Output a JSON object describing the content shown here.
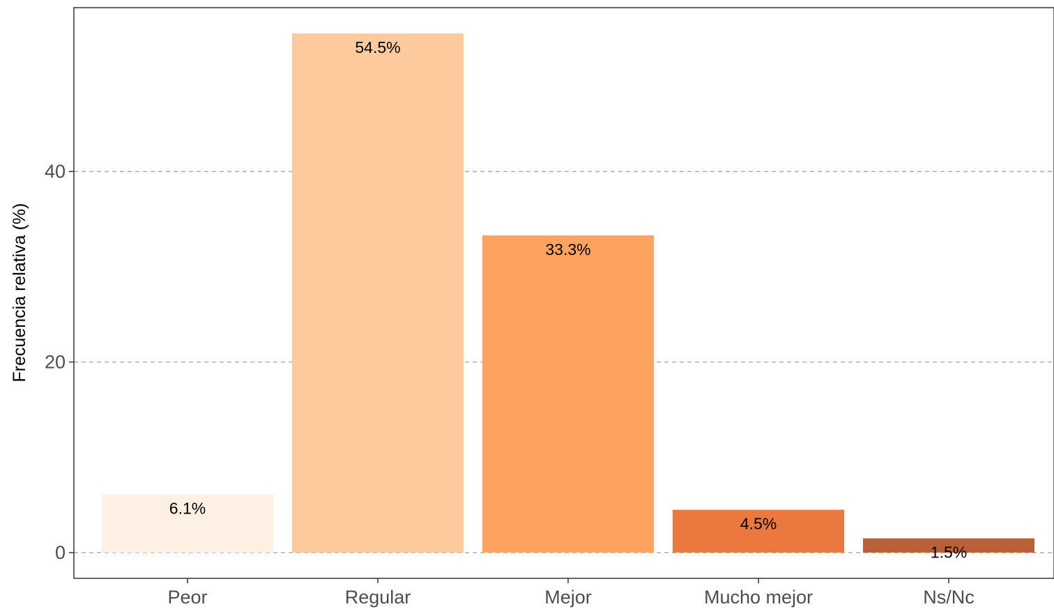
{
  "chart_data": {
    "type": "bar",
    "title": "",
    "xlabel": "",
    "ylabel": "Frecuencia relativa (%)",
    "categories": [
      "Peor",
      "Regular",
      "Mejor",
      "Mucho mejor",
      "Ns/Nc"
    ],
    "values": [
      6.1,
      54.5,
      33.3,
      4.5,
      1.5
    ],
    "value_labels": [
      "6.1%",
      "54.5%",
      "33.3%",
      "4.5%",
      "1.5%"
    ],
    "colors": [
      "#FEF0E2",
      "#FCCA9C",
      "#FDA35F",
      "#EB783E",
      "#BA6037"
    ],
    "yticks": [
      0,
      20,
      40
    ],
    "ytick_labels": [
      "0",
      "20",
      "40"
    ],
    "ylim": [
      -2.7,
      57.2
    ],
    "grid": "horizontal dashed at major y ticks",
    "legend": "none"
  }
}
